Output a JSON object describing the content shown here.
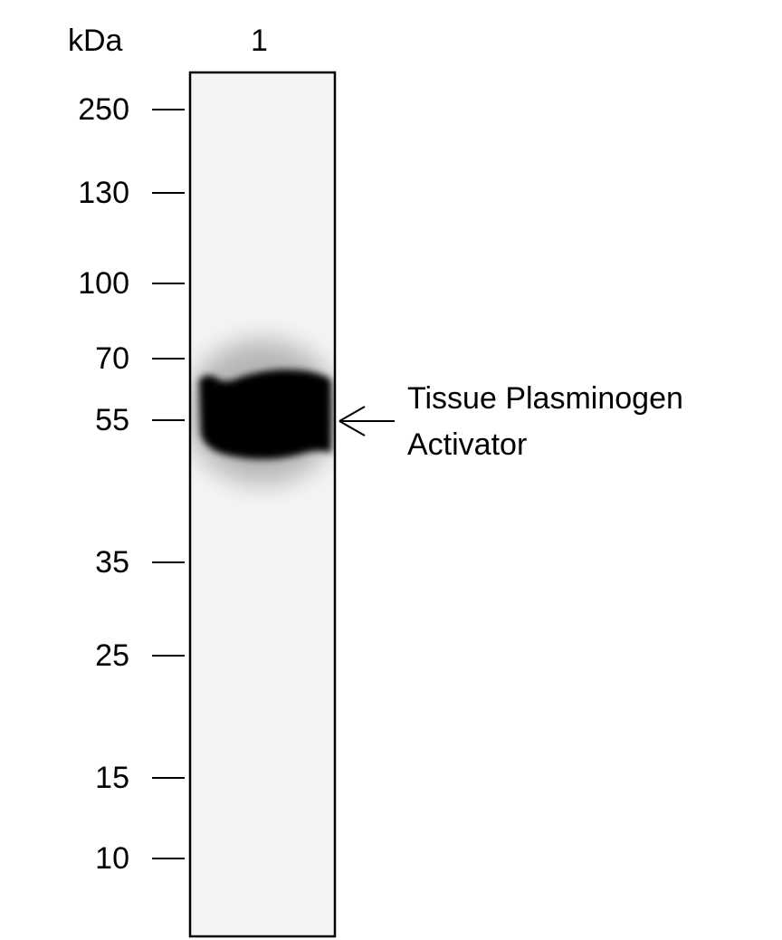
{
  "unit_label": "kDa",
  "lanes": [
    {
      "label": "1"
    }
  ],
  "markers": [
    "250",
    "130",
    "100",
    "70",
    "55",
    "35",
    "25",
    "15",
    "10"
  ],
  "annotation": {
    "line1": "Tissue Plasminogen",
    "line2": "Activator",
    "points_to_marker": "55"
  }
}
